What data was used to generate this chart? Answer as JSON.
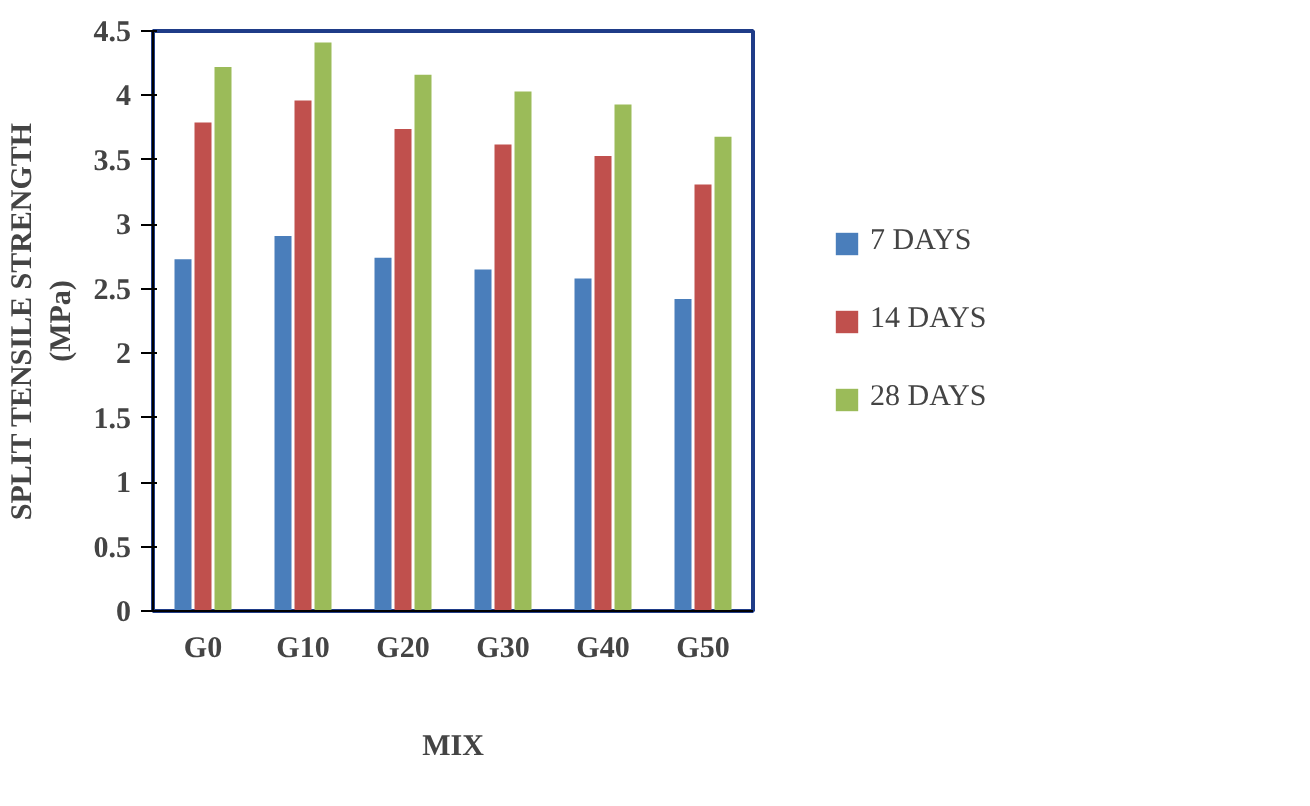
{
  "chart_data": {
    "type": "bar",
    "xlabel": "MIX",
    "ylabel": "SPLIT TENSILE STRENGTH\n(MPa)",
    "categories": [
      "G0",
      "G10",
      "G20",
      "G30",
      "G40",
      "G50"
    ],
    "series": [
      {
        "name": "7 DAYS",
        "color": "#4a7ebb",
        "values": [
          2.73,
          2.91,
          2.74,
          2.65,
          2.58,
          2.42
        ]
      },
      {
        "name": "14 DAYS",
        "color": "#c0504d",
        "values": [
          3.79,
          3.96,
          3.74,
          3.62,
          3.53,
          3.31
        ]
      },
      {
        "name": "28 DAYS",
        "color": "#9bbb59",
        "values": [
          4.22,
          4.41,
          4.16,
          4.03,
          3.93,
          3.68
        ]
      }
    ],
    "ylim": [
      0,
      4.5
    ],
    "yticks": [
      0,
      0.5,
      1,
      1.5,
      2,
      2.5,
      3,
      3.5,
      4,
      4.5
    ],
    "grid": false,
    "legend": "right"
  }
}
